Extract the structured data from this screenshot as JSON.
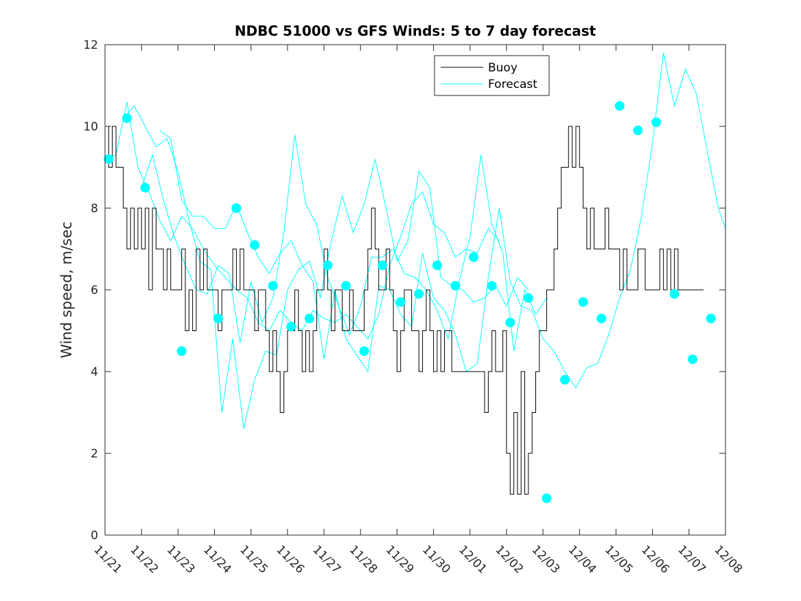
{
  "chart_data": {
    "type": "line",
    "title": "NDBC 51000 vs GFS Winds: 5 to 7 day forecast",
    "xlabel": "",
    "ylabel": "Wind speed, m/sec",
    "xlim": [
      0,
      17
    ],
    "ylim": [
      0,
      12
    ],
    "yticks": [
      0,
      2,
      4,
      6,
      8,
      10,
      12
    ],
    "xtick_labels": [
      "11/21",
      "11/22",
      "11/23",
      "11/24",
      "11/25",
      "11/26",
      "11/27",
      "11/28",
      "11/29",
      "11/30",
      "12/01",
      "12/02",
      "12/03",
      "12/04",
      "12/05",
      "12/06",
      "12/07",
      "12/08"
    ],
    "legend": {
      "location": "top-center",
      "entries": [
        "Buoy",
        "Forecast"
      ]
    },
    "colors": {
      "buoy": "#000000",
      "forecast": "#00ffff",
      "axis": "#262626"
    },
    "series": [
      {
        "name": "Buoy",
        "x": [
          0,
          0.1,
          0.2,
          0.3,
          0.4,
          0.5,
          0.6,
          0.7,
          0.8,
          0.9,
          1,
          1.1,
          1.2,
          1.3,
          1.4,
          1.5,
          1.6,
          1.7,
          1.8,
          1.9,
          2,
          2.1,
          2.2,
          2.3,
          2.4,
          2.5,
          2.6,
          2.7,
          2.8,
          2.9,
          3,
          3.1,
          3.2,
          3.3,
          3.4,
          3.5,
          3.6,
          3.7,
          3.8,
          3.9,
          4,
          4.1,
          4.2,
          4.3,
          4.4,
          4.5,
          4.6,
          4.7,
          4.8,
          4.9,
          5,
          5.1,
          5.2,
          5.3,
          5.4,
          5.5,
          5.6,
          5.7,
          5.8,
          5.9,
          6,
          6.1,
          6.2,
          6.3,
          6.4,
          6.5,
          6.6,
          6.7,
          6.8,
          6.9,
          7,
          7.1,
          7.2,
          7.3,
          7.4,
          7.5,
          7.6,
          7.7,
          7.8,
          7.9,
          8,
          8.1,
          8.2,
          8.3,
          8.4,
          8.5,
          8.6,
          8.7,
          8.8,
          8.9,
          9,
          9.1,
          9.2,
          9.3,
          9.4,
          9.5,
          9.6,
          9.7,
          9.8,
          9.9,
          10,
          10.1,
          10.2,
          10.3,
          10.4,
          10.5,
          10.6,
          10.7,
          10.8,
          10.9,
          11,
          11.1,
          11.2,
          11.3,
          11.4,
          11.5,
          11.6,
          11.7,
          11.8,
          11.9,
          12,
          12.1,
          12.2,
          12.3,
          12.4,
          12.5,
          12.6,
          12.7,
          12.8,
          12.9,
          13,
          13.1,
          13.2,
          13.3,
          13.4,
          13.5,
          13.6,
          13.7,
          13.8,
          13.9,
          14,
          14.1,
          14.2,
          14.3,
          14.4,
          14.5,
          14.6,
          14.7,
          14.8,
          14.9,
          15,
          15.1,
          15.2,
          15.3,
          15.4,
          15.5,
          15.6,
          15.7,
          15.8,
          15.9,
          16,
          16.1,
          16.2,
          16.3
        ],
        "values": [
          10,
          9,
          10,
          9,
          9,
          8,
          7,
          8,
          7,
          8,
          7,
          8,
          6,
          8,
          7,
          7,
          6,
          7,
          6,
          6,
          6,
          7,
          5,
          6,
          5,
          7,
          6,
          7,
          6,
          6,
          6,
          5,
          6,
          6,
          6,
          7,
          6,
          7,
          6,
          6,
          6,
          5,
          6,
          6,
          5,
          4,
          5,
          4,
          3,
          4,
          5,
          5,
          6,
          5,
          4,
          5,
          4,
          5,
          6,
          6,
          7,
          6,
          5,
          6,
          6,
          5,
          5,
          6,
          5,
          5,
          5,
          6,
          7,
          8,
          7,
          6,
          6,
          7,
          6,
          5,
          4,
          5,
          6,
          6,
          5,
          5,
          4,
          5,
          6,
          5,
          4,
          5,
          4,
          5,
          5,
          4,
          4,
          4,
          4,
          4,
          4,
          4,
          4,
          4,
          3,
          4,
          5,
          4,
          4,
          5,
          2,
          1,
          3,
          1,
          4,
          1,
          2,
          3,
          4,
          5,
          5,
          6,
          6,
          7,
          8,
          9,
          9,
          10,
          9,
          10,
          9,
          8,
          7,
          8,
          7,
          7,
          7,
          8,
          7,
          7,
          7,
          6,
          7,
          6,
          6,
          6,
          7,
          7,
          6,
          6,
          6,
          6,
          7,
          6,
          7,
          6,
          7,
          6,
          6,
          6,
          6,
          6,
          6,
          6
        ]
      },
      {
        "name": "Forecast",
        "runs": [
          {
            "x": [
              0,
              0.3,
              0.6,
              0.9,
              1.2,
              1.5,
              1.8,
              2.1,
              2.4,
              2.7,
              3.0,
              3.3,
              3.6,
              3.9,
              4.2,
              4.5,
              4.8,
              5.1,
              5.4,
              5.7,
              6.0,
              6.3,
              6.6,
              6.9,
              7.2,
              7.5,
              7.8,
              8.1,
              8.4,
              8.7,
              9.0,
              9.3,
              9.6,
              9.9,
              10.2,
              10.5,
              10.8
            ],
            "values": [
              9.2,
              9.3,
              10.6,
              9.0,
              8.4,
              7.7,
              7.2,
              7.8,
              7.5,
              7.0,
              6.6,
              6.3,
              6.0,
              5.8,
              5.2,
              5.0,
              5.5,
              5.2,
              5.0,
              5.5,
              5.3,
              5.2,
              5.4,
              5.1,
              4.8,
              5.4,
              6.6,
              7.3,
              8.1,
              8.4,
              7.6,
              7.4,
              6.8,
              7.0,
              6.9,
              7.5,
              7.2
            ]
          },
          {
            "x": [
              0.5,
              0.8,
              1.1,
              1.4,
              1.7,
              2.0,
              2.3,
              2.6,
              2.9,
              3.2,
              3.5,
              3.8,
              4.1,
              4.4,
              4.7,
              5.0,
              5.3,
              5.6,
              5.9,
              6.2,
              6.5,
              6.8,
              7.1,
              7.4,
              7.7,
              8.0,
              8.3,
              8.6,
              8.9,
              9.2,
              9.5,
              9.8,
              10.1,
              10.4,
              10.7,
              11.0,
              11.3,
              11.6
            ],
            "values": [
              10.2,
              10.5,
              10.0,
              9.5,
              9.7,
              8.9,
              7.7,
              6.7,
              6.5,
              3.0,
              4.8,
              2.6,
              3.8,
              4.5,
              4.4,
              6.0,
              6.5,
              6.7,
              5.8,
              7.2,
              8.3,
              7.4,
              8.1,
              9.2,
              8.0,
              6.7,
              7.2,
              8.9,
              8.5,
              6.3,
              6.1,
              6.0,
              5.7,
              5.8,
              6.1,
              5.6,
              6.3,
              6.0
            ]
          },
          {
            "x": [
              1.0,
              1.3,
              1.6,
              1.9,
              2.2,
              2.5,
              2.8,
              3.1,
              3.4,
              3.7,
              4.0,
              4.3,
              4.6,
              4.9,
              5.2,
              5.5,
              5.8,
              6.1,
              6.4,
              6.7,
              7.0,
              7.3,
              7.6,
              7.9,
              8.2,
              8.5,
              8.8,
              9.1,
              9.4,
              9.7,
              10.0,
              10.3,
              10.6,
              10.9,
              11.2,
              11.5,
              11.8,
              12.1
            ],
            "values": [
              8.5,
              9.3,
              8.2,
              7.3,
              6.6,
              6.0,
              5.9,
              6.6,
              6.4,
              4.7,
              6.2,
              5.2,
              5.8,
              7.4,
              9.8,
              8.1,
              7.6,
              6.3,
              5.6,
              4.9,
              5.6,
              6.8,
              6.8,
              7.0,
              6.4,
              6.3,
              6.0,
              5.5,
              4.8,
              6.2,
              7.3,
              9.3,
              7.6,
              6.9,
              4.5,
              6.0,
              5.4,
              5.8
            ]
          },
          {
            "x": [
              1.5,
              1.8,
              2.1,
              2.4,
              2.7,
              3.0,
              3.3,
              3.6,
              3.9,
              4.2,
              4.5,
              4.8,
              5.1,
              5.4,
              5.7,
              6.0,
              6.3,
              6.6,
              6.9,
              7.2,
              7.5,
              7.8,
              8.1,
              8.4,
              8.7,
              9.0,
              9.3,
              9.6,
              9.9,
              10.2,
              10.5,
              10.8,
              11.1,
              11.4,
              11.7,
              12.0,
              12.3,
              12.6,
              12.9,
              13.2,
              13.5,
              13.8,
              14.1,
              14.4,
              14.7,
              15.0,
              15.3,
              15.6,
              15.9,
              16.2,
              16.5,
              16.8,
              17.0
            ],
            "values": [
              9.9,
              9.7,
              8.2,
              7.8,
              7.8,
              7.5,
              7.5,
              8.1,
              7.4,
              6.8,
              6.4,
              6.9,
              7.2,
              6.6,
              6.2,
              4.3,
              6.0,
              4.8,
              4.4,
              4.0,
              6.1,
              6.0,
              5.4,
              5.1,
              6.9,
              5.8,
              5.5,
              4.9,
              4.0,
              4.2,
              6.3,
              8.0,
              6.2,
              5.6,
              5.5,
              4.8,
              4.5,
              4.0,
              3.6,
              4.1,
              4.2,
              4.9,
              5.8,
              6.5,
              7.8,
              9.6,
              11.8,
              10.5,
              11.4,
              10.8,
              9.4,
              8.0,
              7.5
            ]
          }
        ]
      },
      {
        "name": "Forecast markers",
        "x": [
          0.1,
          0.6,
          1.1,
          2.1,
          3.1,
          3.6,
          4.1,
          4.6,
          5.1,
          5.6,
          6.1,
          6.6,
          7.1,
          7.6,
          8.1,
          8.6,
          9.1,
          9.6,
          10.1,
          10.6,
          11.1,
          11.6,
          12.1,
          12.6,
          13.1,
          13.6,
          14.1,
          14.6,
          15.1,
          15.6,
          16.1,
          16.6
        ],
        "values": [
          9.2,
          10.2,
          8.5,
          4.5,
          5.3,
          8.0,
          7.1,
          6.1,
          5.1,
          5.3,
          6.6,
          6.1,
          4.5,
          6.6,
          5.7,
          5.9,
          6.6,
          6.1,
          6.8,
          6.1,
          5.2,
          5.8,
          0.9,
          3.8,
          5.7,
          5.3,
          10.5,
          9.9,
          10.1,
          5.9,
          4.3,
          5.3
        ]
      }
    ]
  }
}
